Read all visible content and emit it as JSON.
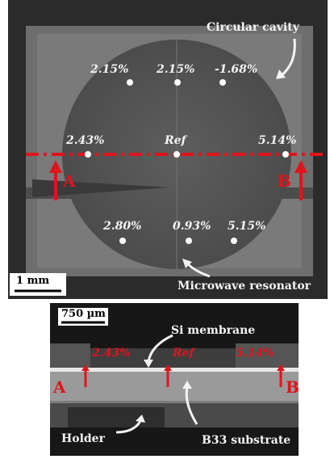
{
  "top_panel": {
    "title_annotation": "Circular cavity",
    "bottom_annotation": "Microwave resonator",
    "scale_bar": "1 mm",
    "points": [
      {
        "name": "p-top-left",
        "label": "2.15%"
      },
      {
        "name": "p-top-center",
        "label": "2.15%"
      },
      {
        "name": "p-top-right",
        "label": "-1.68%"
      },
      {
        "name": "p-mid-left",
        "label": "2.43%"
      },
      {
        "name": "p-mid-center",
        "label": "Ref"
      },
      {
        "name": "p-mid-right",
        "label": "5.14%"
      },
      {
        "name": "p-bot-left",
        "label": "2.80%"
      },
      {
        "name": "p-bot-center",
        "label": "0.93%"
      },
      {
        "name": "p-bot-right",
        "label": "5.15%"
      }
    ],
    "marker_a": "A",
    "marker_b": "B",
    "colors": {
      "background": "#2b2b2b",
      "cavity": "#555555",
      "line": "#e0141b"
    }
  },
  "bottom_panel": {
    "scale_bar": "750 µm",
    "membrane_annotation": "Si membrane",
    "points": [
      {
        "name": "cs-left",
        "label": "2.43%"
      },
      {
        "name": "cs-center",
        "label": "Ref"
      },
      {
        "name": "cs-right",
        "label": "5.14%"
      }
    ],
    "marker_a": "A",
    "marker_b": "B",
    "holder_annotation": "Holder",
    "substrate_annotation": "B33 substrate"
  }
}
